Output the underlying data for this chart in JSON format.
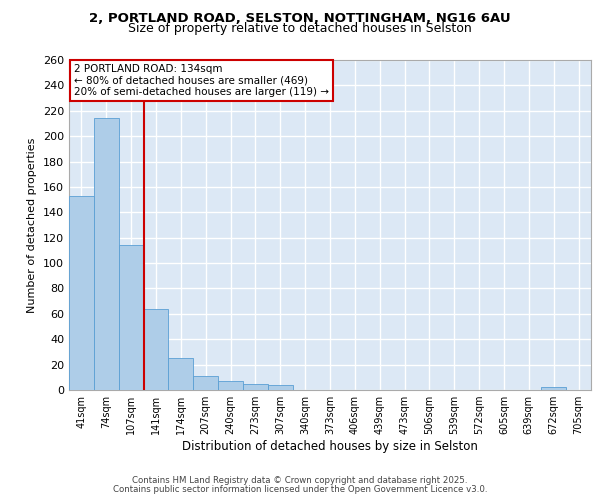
{
  "title_line1": "2, PORTLAND ROAD, SELSTON, NOTTINGHAM, NG16 6AU",
  "title_line2": "Size of property relative to detached houses in Selston",
  "xlabel": "Distribution of detached houses by size in Selston",
  "ylabel": "Number of detached properties",
  "categories": [
    "41sqm",
    "74sqm",
    "107sqm",
    "141sqm",
    "174sqm",
    "207sqm",
    "240sqm",
    "273sqm",
    "307sqm",
    "340sqm",
    "373sqm",
    "406sqm",
    "439sqm",
    "473sqm",
    "506sqm",
    "539sqm",
    "572sqm",
    "605sqm",
    "639sqm",
    "672sqm",
    "705sqm"
  ],
  "values": [
    153,
    214,
    114,
    64,
    25,
    11,
    7,
    5,
    4,
    0,
    0,
    0,
    0,
    0,
    0,
    0,
    0,
    0,
    0,
    2,
    0
  ],
  "bar_color": "#aecde8",
  "bar_edge_color": "#5a9fd4",
  "bg_color": "#dce8f5",
  "grid_color": "#ffffff",
  "annotation_title": "2 PORTLAND ROAD: 134sqm",
  "annotation_line2": "← 80% of detached houses are smaller (469)",
  "annotation_line3": "20% of semi-detached houses are larger (119) →",
  "annotation_box_color": "#ffffff",
  "annotation_border_color": "#cc0000",
  "footer_line1": "Contains HM Land Registry data © Crown copyright and database right 2025.",
  "footer_line2": "Contains public sector information licensed under the Open Government Licence v3.0.",
  "ylim": [
    0,
    260
  ],
  "yticks": [
    0,
    20,
    40,
    60,
    80,
    100,
    120,
    140,
    160,
    180,
    200,
    220,
    240,
    260
  ],
  "red_line_x": 2.5,
  "title_fontsize": 9.5,
  "subtitle_fontsize": 9.0,
  "font_family": "DejaVu Sans"
}
